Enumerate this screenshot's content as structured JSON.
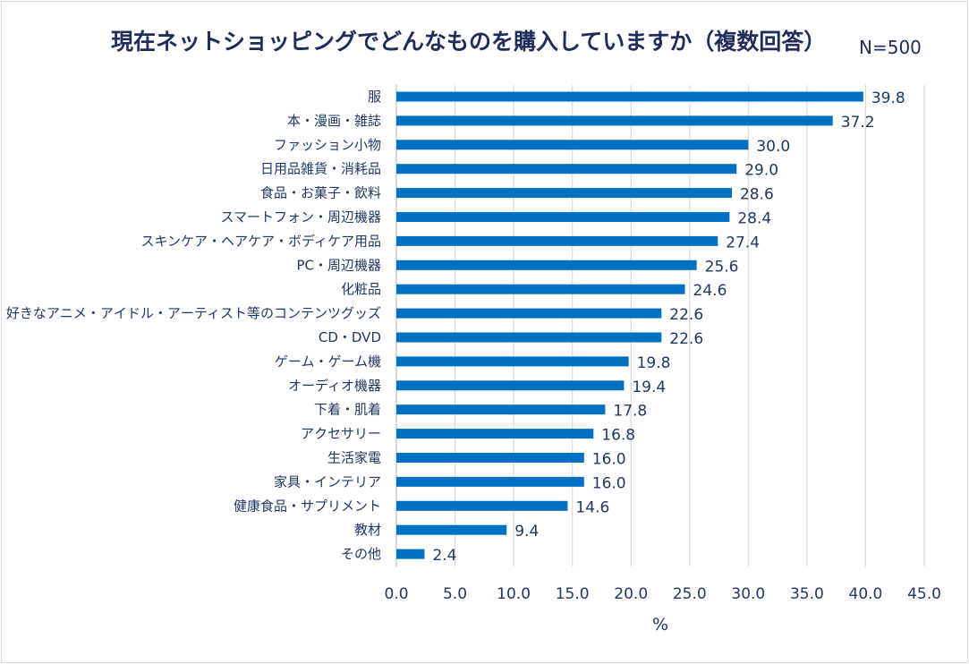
{
  "chart_data": {
    "type": "bar",
    "orientation": "horizontal",
    "title": "現在ネットショッピングでどんなものを購入していますか（複数回答）",
    "subtitle": "N=500",
    "xlabel": "%",
    "ylabel": "",
    "xlim": [
      0,
      45
    ],
    "ticks": [
      "0.0",
      "5.0",
      "10.0",
      "15.0",
      "20.0",
      "25.0",
      "30.0",
      "35.0",
      "40.0",
      "45.0"
    ],
    "grid": true,
    "bar_color": "#0070C0",
    "categories": [
      "服",
      "本・漫画・雑誌",
      "ファッション小物",
      "日用品雑貨・消耗品",
      "食品・お菓子・飲料",
      "スマートフォン・周辺機器",
      "スキンケア・ヘアケア・ボディケア用品",
      "PC・周辺機器",
      "化粧品",
      "好きなアニメ・アイドル・アーティスト等のコンテンツグッズ",
      "CD・DVD",
      "ゲーム・ゲーム機",
      "オーディオ機器",
      "下着・肌着",
      "アクセサリー",
      "生活家電",
      "家具・インテリア",
      "健康食品・サプリメント",
      "教材",
      "その他"
    ],
    "values": [
      39.8,
      37.2,
      30.0,
      29.0,
      28.6,
      28.4,
      27.4,
      25.6,
      24.6,
      22.6,
      22.6,
      19.8,
      19.4,
      17.8,
      16.8,
      16.0,
      16.0,
      14.6,
      9.4,
      2.4
    ]
  }
}
